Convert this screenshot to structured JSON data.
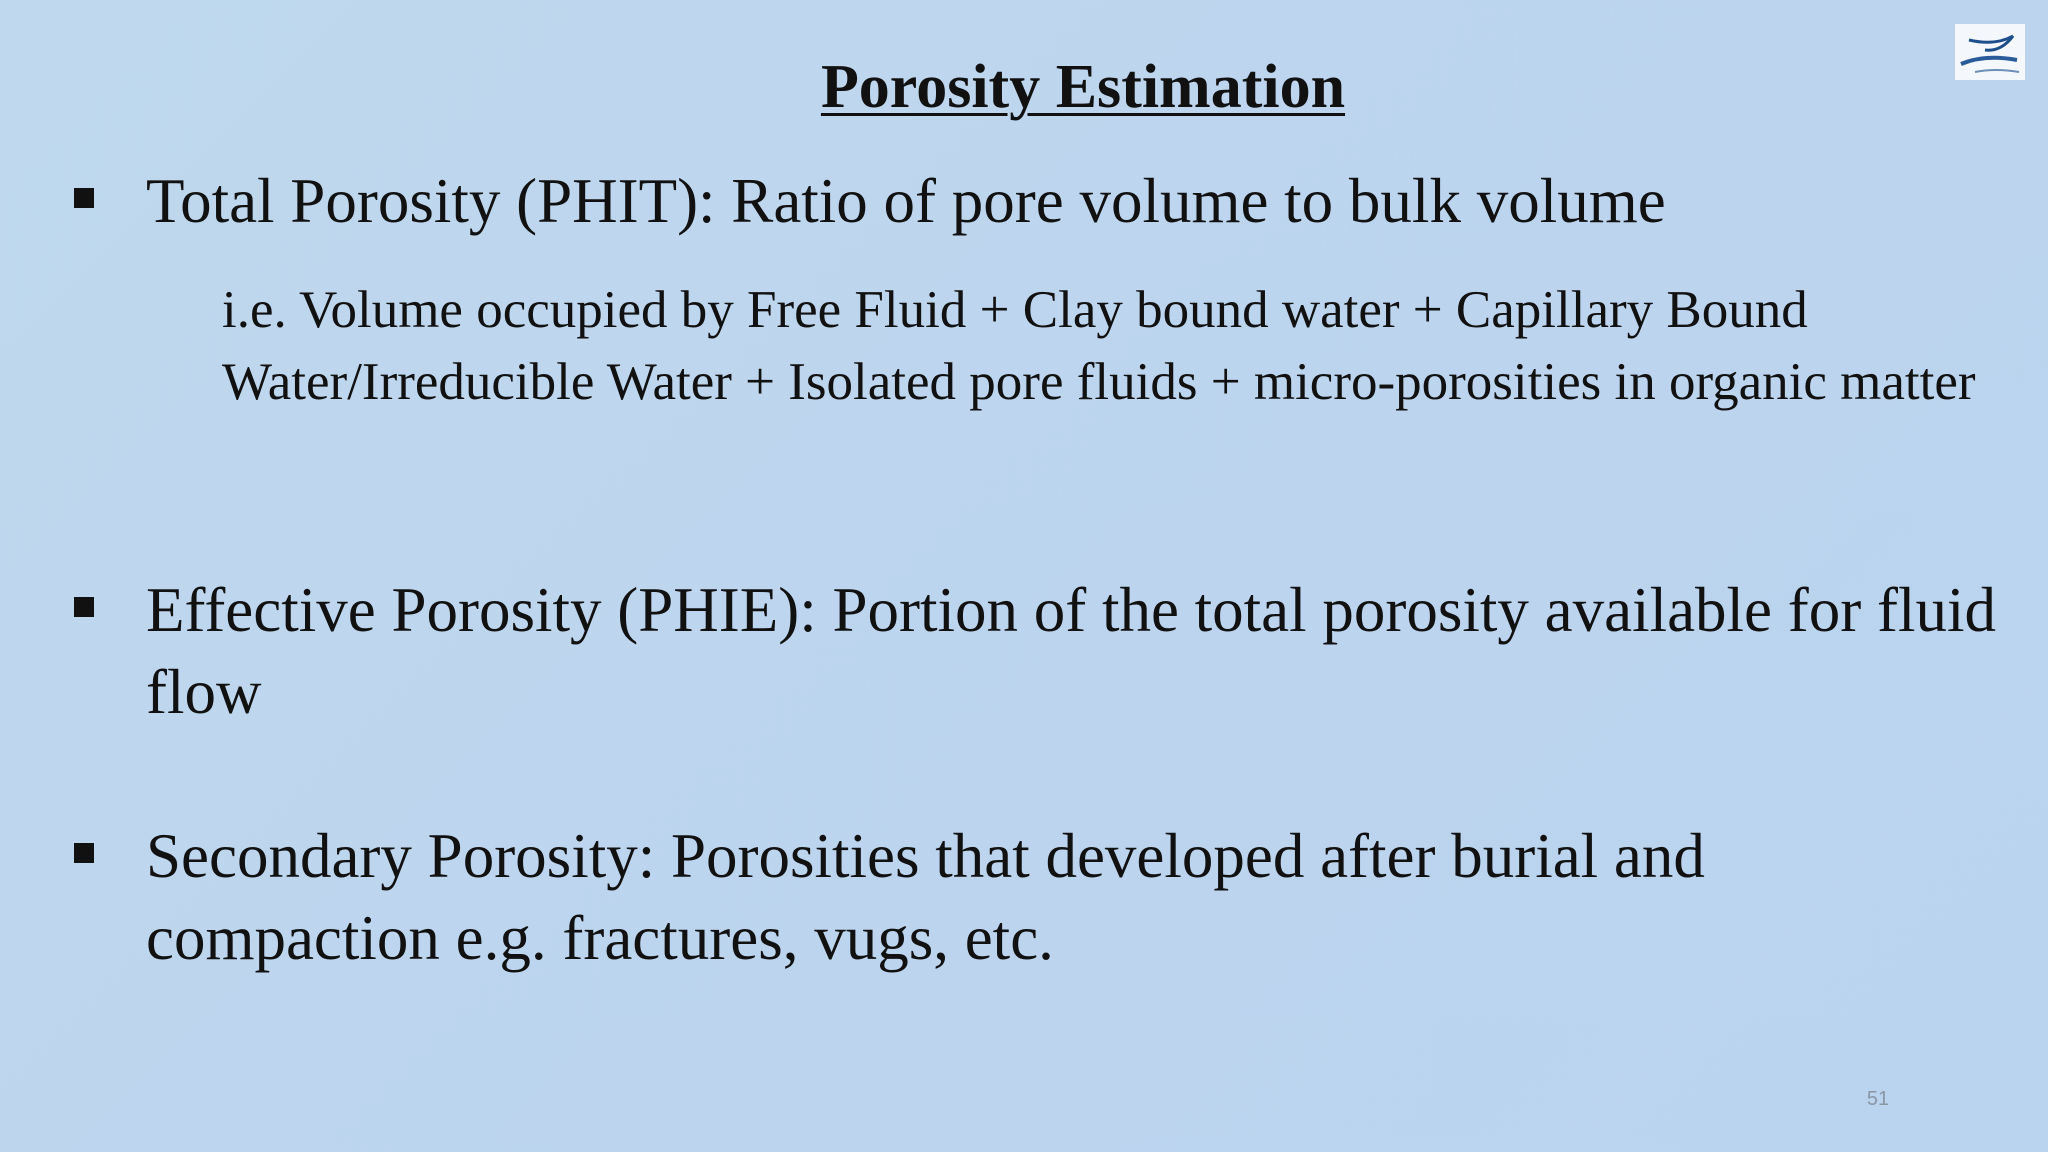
{
  "slide": {
    "title": "Porosity Estimation",
    "bullets": [
      {
        "text": "Total Porosity (PHIT): Ratio of pore volume to bulk volume",
        "note": "i.e. Volume occupied by Free Fluid + Clay bound water + Capillary Bound Water/Irreducible Water + Isolated pore fluids + micro-porosities in organic matter"
      },
      {
        "text": "Effective Porosity (PHIE): Portion of the total porosity available for fluid flow"
      },
      {
        "text": "Secondary Porosity: Porosities that developed after burial and compaction e.g. fractures, vugs, etc."
      }
    ],
    "page_number": "51"
  }
}
